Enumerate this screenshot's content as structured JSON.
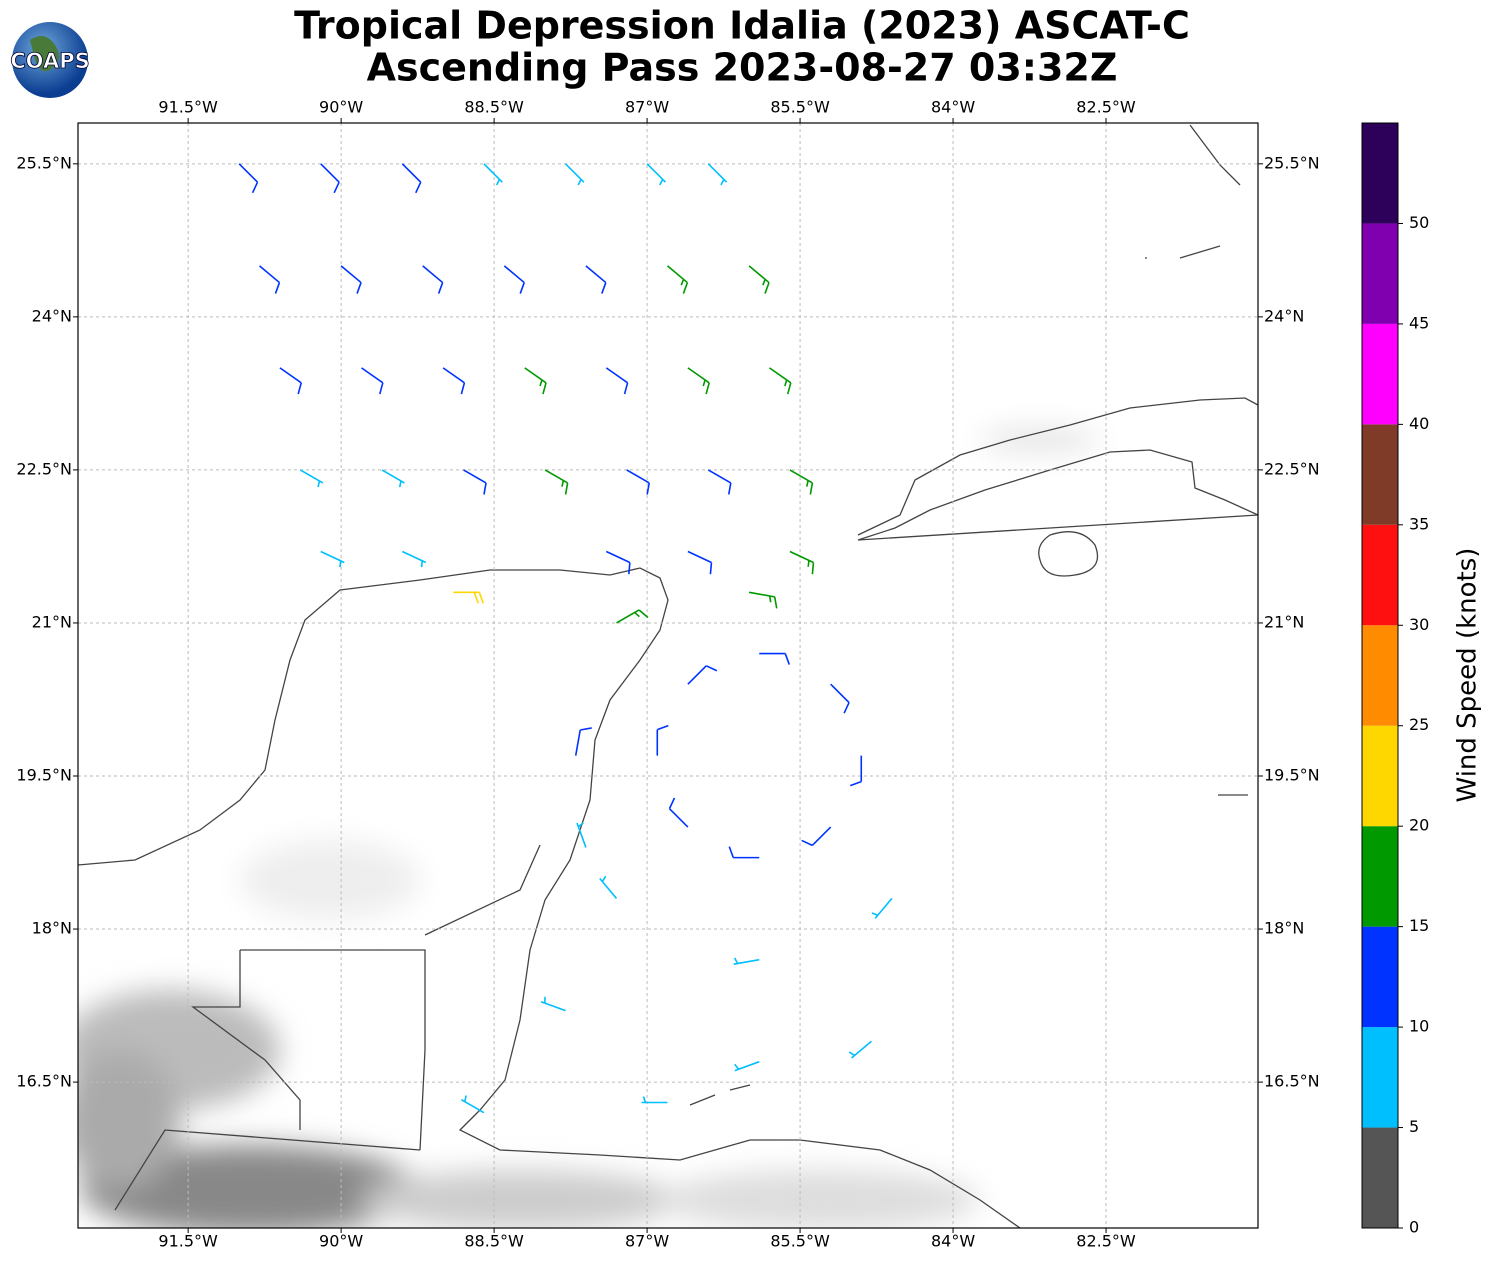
{
  "chart_data": {
    "type": "wind-barb-map",
    "title": [
      "Tropical Depression Idalia (2023) ASCAT-C",
      "Ascending Pass 2023-08-27 03:32Z"
    ],
    "logo": "COAPS",
    "xlim": [
      -92.58,
      -81.01
    ],
    "ylim": [
      15.07,
      25.9
    ],
    "xticks": [
      {
        "value": -91.5,
        "label": "91.5°W"
      },
      {
        "value": -90,
        "label": "90°W"
      },
      {
        "value": -88.5,
        "label": "88.5°W"
      },
      {
        "value": -87,
        "label": "87°W"
      },
      {
        "value": -85.5,
        "label": "85.5°W"
      },
      {
        "value": -84,
        "label": "84°W"
      },
      {
        "value": -82.5,
        "label": "82.5°W"
      }
    ],
    "yticks": [
      {
        "value": 25.5,
        "label": "25.5°N"
      },
      {
        "value": 24,
        "label": "24°N"
      },
      {
        "value": 22.5,
        "label": "22.5°N"
      },
      {
        "value": 21,
        "label": "21°N"
      },
      {
        "value": 19.5,
        "label": "19.5°N"
      },
      {
        "value": 18,
        "label": "18°N"
      },
      {
        "value": 16.5,
        "label": "16.5°N"
      }
    ],
    "grid": true,
    "barbs": {
      "lon": [
        -91.0,
        -90.2,
        -89.4,
        -88.6,
        -87.8,
        -87.0,
        -86.4,
        -90.8,
        -90.0,
        -89.2,
        -88.4,
        -87.6,
        -86.8,
        -86.0,
        -90.6,
        -89.8,
        -89.0,
        -88.2,
        -87.4,
        -86.6,
        -85.8,
        -90.4,
        -89.6,
        -88.8,
        -88.0,
        -87.2,
        -86.4,
        -85.6,
        -90.2,
        -89.4,
        -87.4,
        -86.6,
        -85.6,
        -84.9,
        -85.9,
        -86.9,
        -85.9,
        -85.2,
        -86.6,
        -86.6,
        -85.2,
        -86.0,
        -87.7,
        -85.9,
        -87.3,
        -84.6,
        -87.3,
        -85.9,
        -87.8,
        -88.6,
        -84.8,
        -86.8,
        -87.6,
        -88.9
      ],
      "lat": [
        25.5,
        25.5,
        25.5,
        25.5,
        25.5,
        25.5,
        25.5,
        24.5,
        24.5,
        24.5,
        24.5,
        24.5,
        24.5,
        24.5,
        23.5,
        23.5,
        23.5,
        23.5,
        23.5,
        23.5,
        23.5,
        22.5,
        22.5,
        22.5,
        22.5,
        22.5,
        22.5,
        22.5,
        21.7,
        21.7,
        21.7,
        21.7,
        21.7,
        19.7,
        20.7,
        19.7,
        18.7,
        20.4,
        20.4,
        19.0,
        19.0,
        21.3,
        19.7,
        17.7,
        18.3,
        18.3,
        21.0,
        16.7,
        17.2,
        16.2,
        16.9,
        16.3,
        18.8,
        21.3
      ],
      "speed": [
        12,
        12,
        11,
        9,
        8,
        8,
        8,
        12,
        12,
        13,
        13,
        14,
        16,
        17,
        12,
        12,
        13,
        16,
        13,
        16,
        17,
        8,
        9,
        11,
        16,
        12,
        13,
        16,
        7,
        8,
        13,
        12,
        17,
        12,
        13,
        11,
        12,
        12,
        12,
        11,
        12,
        16,
        12,
        8,
        9,
        9,
        17,
        7,
        7,
        9,
        7,
        6,
        8,
        22
      ],
      "direction": [
        135,
        135,
        135,
        135,
        135,
        135,
        135,
        130,
        130,
        130,
        130,
        130,
        130,
        130,
        125,
        125,
        125,
        125,
        125,
        125,
        125,
        120,
        120,
        120,
        120,
        120,
        120,
        120,
        115,
        115,
        115,
        115,
        115,
        180,
        90,
        0,
        270,
        135,
        45,
        315,
        225,
        100,
        10,
        260,
        320,
        220,
        60,
        250,
        290,
        300,
        230,
        270,
        340,
        90
      ]
    },
    "colorbar": {
      "label": "Wind Speed (knots)",
      "clim": [
        0,
        55
      ],
      "colors": [
        "#555555",
        "#00bfff",
        "#0033ff",
        "#009900",
        "#ffd700",
        "#ff8c00",
        "#ff1010",
        "#803a28",
        "#ff00ff",
        "#8000b0",
        "#2d0059"
      ],
      "ticks": [
        0,
        5,
        10,
        15,
        20,
        25,
        30,
        35,
        40,
        45,
        50
      ]
    }
  }
}
